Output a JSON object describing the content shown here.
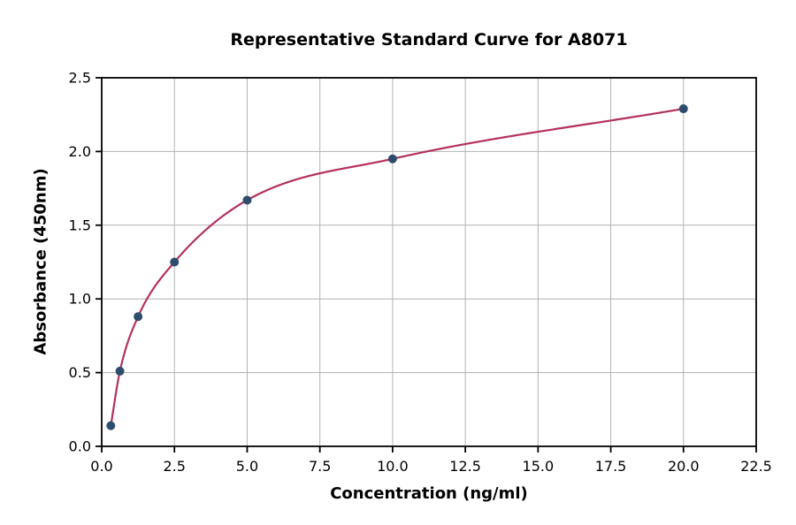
{
  "chart_data": {
    "type": "scatter",
    "title": "Representative Standard Curve for A8071",
    "xlabel": "Concentration (ng/ml)",
    "ylabel": "Absorbance (450nm)",
    "xlim": [
      0,
      22.5
    ],
    "ylim": [
      0,
      2.5
    ],
    "x_ticks": [
      0.0,
      2.5,
      5.0,
      7.5,
      10.0,
      12.5,
      15.0,
      17.5,
      20.0,
      22.5
    ],
    "x_tick_labels": [
      "0.0",
      "2.5",
      "5.0",
      "7.5",
      "10.0",
      "12.5",
      "15.0",
      "17.5",
      "20.0",
      "22.5"
    ],
    "y_ticks": [
      0.0,
      0.5,
      1.0,
      1.5,
      2.0,
      2.5
    ],
    "y_tick_labels": [
      "0.0",
      "0.5",
      "1.0",
      "1.5",
      "2.0",
      "2.5"
    ],
    "grid": true,
    "legend": "none",
    "points": [
      {
        "x": 0.3125,
        "y": 0.14
      },
      {
        "x": 0.625,
        "y": 0.51
      },
      {
        "x": 1.25,
        "y": 0.88
      },
      {
        "x": 2.5,
        "y": 1.25
      },
      {
        "x": 5,
        "y": 1.67
      },
      {
        "x": 10,
        "y": 1.95
      },
      {
        "x": 20,
        "y": 2.29
      }
    ],
    "series": [
      {
        "name": "standards",
        "type": "scatter"
      },
      {
        "name": "fit-curve",
        "type": "line"
      }
    ],
    "colors": {
      "curve": "#b4315e",
      "points": "#2e4d6e",
      "grid": "#b3b3b3",
      "axis": "#000000",
      "background": "#ffffff",
      "text": "#000000"
    }
  }
}
